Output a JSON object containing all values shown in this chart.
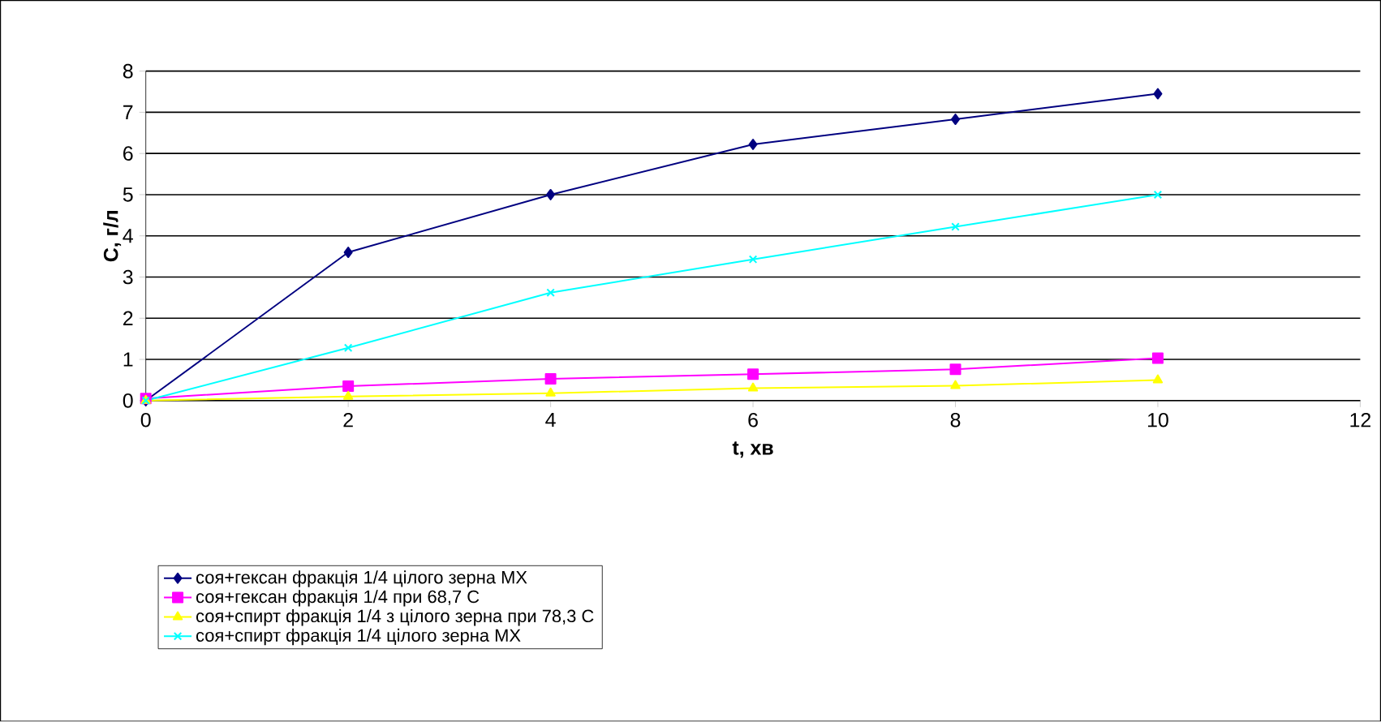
{
  "chart_data": {
    "type": "line",
    "xlabel": "t, хв",
    "ylabel": "C, г/л",
    "xlim": [
      0,
      12
    ],
    "ylim": [
      0,
      8
    ],
    "xticks": [
      0,
      2,
      4,
      6,
      8,
      10,
      12
    ],
    "yticks": [
      0,
      1,
      2,
      3,
      4,
      5,
      6,
      7,
      8
    ],
    "grid": "y",
    "legend": "bottom",
    "x": [
      0,
      2,
      4,
      6,
      8,
      10
    ],
    "series": [
      {
        "name": "соя+гексан фракція 1/4 цілого зерна МХ",
        "color": "#000080",
        "marker": "diamond",
        "values": [
          0,
          3.6,
          5.0,
          6.22,
          6.83,
          7.45
        ]
      },
      {
        "name": "соя+гексан фракція 1/4 при 68,7 С",
        "color": "#ff00ff",
        "marker": "square",
        "values": [
          0.05,
          0.35,
          0.53,
          0.64,
          0.76,
          1.03
        ]
      },
      {
        "name": "соя+спирт фракція 1/4 з цілого зерна при 78,3 С",
        "color": "#ffff00",
        "marker": "triangle",
        "values": [
          0,
          0.1,
          0.18,
          0.3,
          0.36,
          0.5
        ]
      },
      {
        "name": "соя+спирт фракція 1/4 цілого зерна МХ",
        "color": "#00ffff",
        "marker": "cross",
        "values": [
          0,
          1.28,
          2.62,
          3.43,
          4.22,
          5.0
        ]
      }
    ]
  }
}
